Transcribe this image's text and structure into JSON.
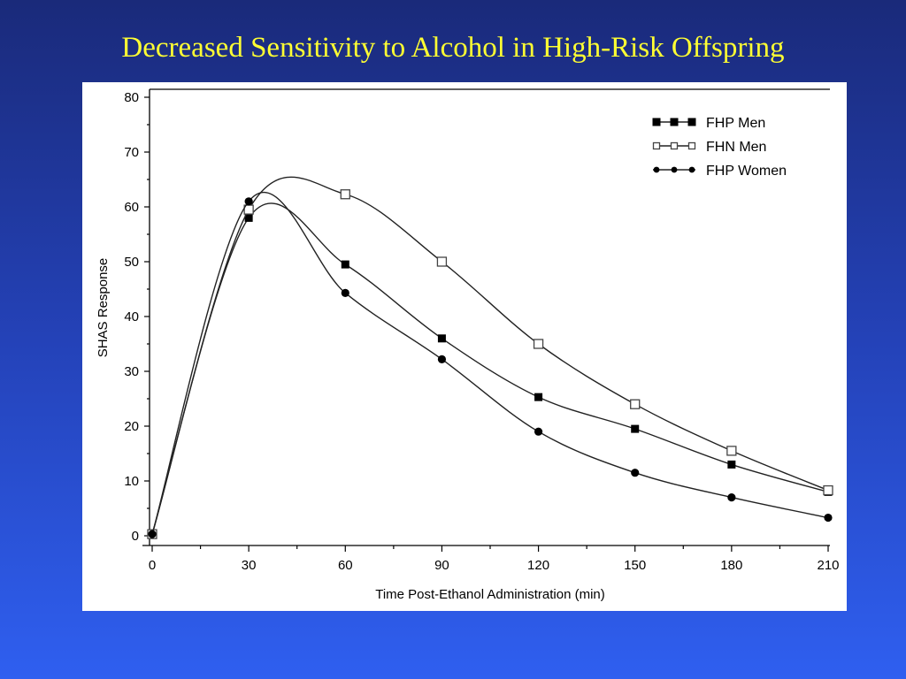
{
  "slide": {
    "title": "Decreased Sensitivity to Alcohol in High-Risk Offspring"
  },
  "chart_data": {
    "type": "line",
    "title": "",
    "xlabel": "Time Post-Ethanol Administration (min)",
    "ylabel": "SHAS Response",
    "x": [
      0,
      30,
      60,
      90,
      120,
      150,
      180,
      210
    ],
    "xlim": [
      0,
      210
    ],
    "ylim": [
      0,
      80
    ],
    "xticks": [
      0,
      30,
      60,
      90,
      120,
      150,
      180,
      210
    ],
    "yticks": [
      0,
      10,
      20,
      30,
      40,
      50,
      60,
      70,
      80
    ],
    "grid": false,
    "legend_position": "top-right",
    "series": [
      {
        "name": "FHP Men",
        "marker": "filled-square",
        "values": [
          0.3,
          58,
          49.5,
          36,
          25.3,
          19.5,
          13,
          8
        ]
      },
      {
        "name": "FHN Men",
        "marker": "open-square",
        "values": [
          0.3,
          59.5,
          62.3,
          50,
          35,
          24,
          15.5,
          8.3
        ]
      },
      {
        "name": "FHP Women",
        "marker": "filled-circle",
        "values": [
          0.3,
          61,
          44.3,
          32.2,
          19,
          11.5,
          7,
          3.3
        ]
      }
    ],
    "colors": {
      "line": "#222222",
      "marker": "#000000",
      "title": "#ffff33"
    }
  }
}
